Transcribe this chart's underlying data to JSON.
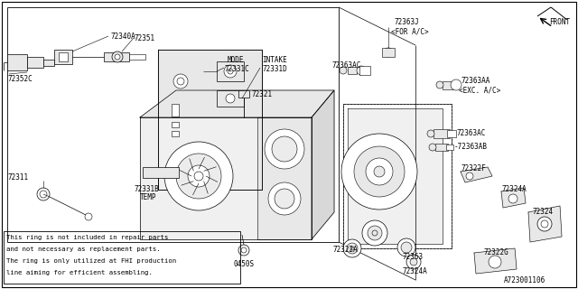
{
  "bg_color": "#ffffff",
  "line_color": "#000000",
  "gray_color": "#cccccc",
  "light_gray": "#e8e8e8",
  "figsize": [
    6.4,
    3.2
  ],
  "dpi": 100,
  "note_lines": [
    "This ring is not included in repair parts",
    "and not necessary as replacement parts.",
    "The ring is only utilized at FHI production",
    "line aiming for efficient assembling."
  ]
}
